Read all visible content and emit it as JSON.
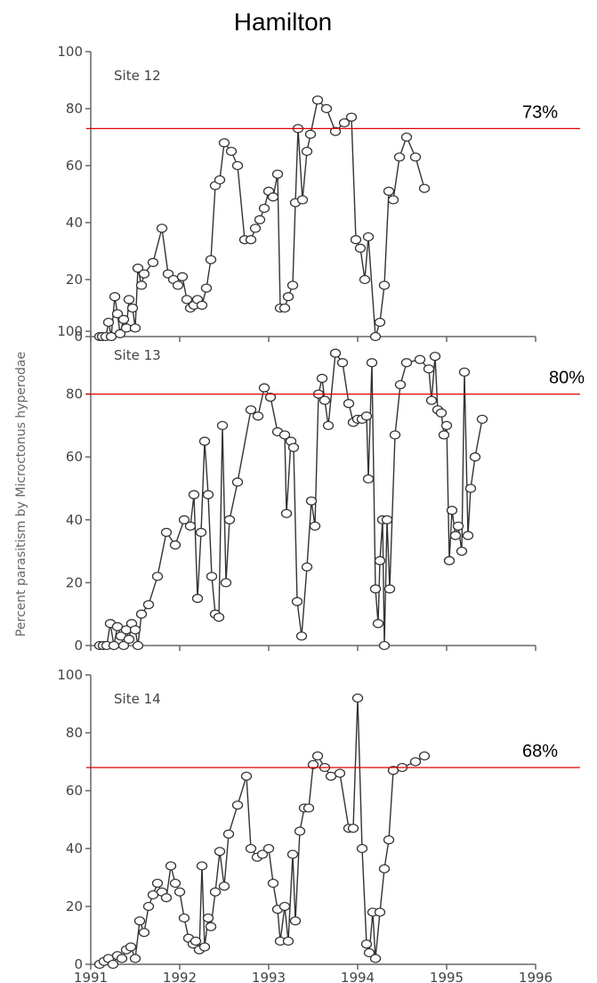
{
  "chart_data": {
    "type": "line",
    "title": "Hamilton",
    "ylabel": "Percent parasitism by Microctonus hyperodae",
    "xlim": [
      1991,
      1996
    ],
    "x_ticks": [
      1991,
      1992,
      1993,
      1994,
      1995,
      1996
    ],
    "ylim": [
      0,
      100
    ],
    "y_ticks": [
      0,
      20,
      40,
      60,
      80,
      100
    ],
    "grid": false,
    "panels": [
      {
        "site_label": "Site 12",
        "threshold": 73,
        "threshold_label": "73%",
        "y_tick_labels": [
          "0",
          "20",
          "40",
          "60",
          "80",
          "100"
        ],
        "x_tick_labels": [],
        "points": [
          [
            1991.1,
            0
          ],
          [
            1991.13,
            0
          ],
          [
            1991.17,
            0
          ],
          [
            1991.2,
            5
          ],
          [
            1991.23,
            0
          ],
          [
            1991.27,
            14
          ],
          [
            1991.3,
            8
          ],
          [
            1991.33,
            1
          ],
          [
            1991.37,
            6
          ],
          [
            1991.4,
            3
          ],
          [
            1991.43,
            13
          ],
          [
            1991.47,
            10
          ],
          [
            1991.5,
            3
          ],
          [
            1991.53,
            24
          ],
          [
            1991.57,
            18
          ],
          [
            1991.6,
            22
          ],
          [
            1991.7,
            26
          ],
          [
            1991.8,
            38
          ],
          [
            1991.87,
            22
          ],
          [
            1991.93,
            20
          ],
          [
            1991.98,
            18
          ],
          [
            1992.03,
            21
          ],
          [
            1992.08,
            13
          ],
          [
            1992.12,
            10
          ],
          [
            1992.16,
            11
          ],
          [
            1992.2,
            13
          ],
          [
            1992.25,
            11
          ],
          [
            1992.3,
            17
          ],
          [
            1992.35,
            27
          ],
          [
            1992.4,
            53
          ],
          [
            1992.45,
            55
          ],
          [
            1992.5,
            68
          ],
          [
            1992.58,
            65
          ],
          [
            1992.65,
            60
          ],
          [
            1992.73,
            34
          ],
          [
            1992.8,
            34
          ],
          [
            1992.85,
            38
          ],
          [
            1992.9,
            41
          ],
          [
            1992.95,
            45
          ],
          [
            1993.0,
            51
          ],
          [
            1993.05,
            49
          ],
          [
            1993.1,
            57
          ],
          [
            1993.13,
            10
          ],
          [
            1993.18,
            10
          ],
          [
            1993.22,
            14
          ],
          [
            1993.27,
            18
          ],
          [
            1993.3,
            47
          ],
          [
            1993.33,
            73
          ],
          [
            1993.38,
            48
          ],
          [
            1993.43,
            65
          ],
          [
            1993.47,
            71
          ],
          [
            1993.55,
            83
          ],
          [
            1993.65,
            80
          ],
          [
            1993.75,
            72
          ],
          [
            1993.85,
            75
          ],
          [
            1993.93,
            77
          ],
          [
            1993.98,
            34
          ],
          [
            1994.03,
            31
          ],
          [
            1994.08,
            20
          ],
          [
            1994.12,
            35
          ],
          [
            1994.2,
            0
          ],
          [
            1994.25,
            5
          ],
          [
            1994.3,
            18
          ],
          [
            1994.35,
            51
          ],
          [
            1994.4,
            48
          ],
          [
            1994.47,
            63
          ],
          [
            1994.55,
            70
          ],
          [
            1994.65,
            63
          ],
          [
            1994.75,
            52
          ]
        ]
      },
      {
        "site_label": "Site 13",
        "threshold": 80,
        "threshold_label": "80%",
        "y_tick_labels": [
          "0",
          "20",
          "40",
          "60",
          "80",
          "100"
        ],
        "x_tick_labels": [],
        "points": [
          [
            1991.1,
            0
          ],
          [
            1991.14,
            0
          ],
          [
            1991.18,
            0
          ],
          [
            1991.22,
            7
          ],
          [
            1991.26,
            0
          ],
          [
            1991.3,
            6
          ],
          [
            1991.34,
            3
          ],
          [
            1991.37,
            0
          ],
          [
            1991.4,
            5
          ],
          [
            1991.43,
            2
          ],
          [
            1991.46,
            7
          ],
          [
            1991.5,
            5
          ],
          [
            1991.53,
            0
          ],
          [
            1991.57,
            10
          ],
          [
            1991.65,
            13
          ],
          [
            1991.75,
            22
          ],
          [
            1991.85,
            36
          ],
          [
            1991.95,
            32
          ],
          [
            1992.05,
            40
          ],
          [
            1992.12,
            38
          ],
          [
            1992.16,
            48
          ],
          [
            1992.2,
            15
          ],
          [
            1992.24,
            36
          ],
          [
            1992.28,
            65
          ],
          [
            1992.32,
            48
          ],
          [
            1992.36,
            22
          ],
          [
            1992.4,
            10
          ],
          [
            1992.44,
            9
          ],
          [
            1992.48,
            70
          ],
          [
            1992.52,
            20
          ],
          [
            1992.56,
            40
          ],
          [
            1992.65,
            52
          ],
          [
            1992.8,
            75
          ],
          [
            1992.88,
            73
          ],
          [
            1992.95,
            82
          ],
          [
            1993.02,
            79
          ],
          [
            1993.1,
            68
          ],
          [
            1993.18,
            67
          ],
          [
            1993.2,
            42
          ],
          [
            1993.25,
            65
          ],
          [
            1993.28,
            63
          ],
          [
            1993.32,
            14
          ],
          [
            1993.37,
            3
          ],
          [
            1993.43,
            25
          ],
          [
            1993.48,
            46
          ],
          [
            1993.52,
            38
          ],
          [
            1993.56,
            80
          ],
          [
            1993.6,
            85
          ],
          [
            1993.63,
            78
          ],
          [
            1993.67,
            70
          ],
          [
            1993.75,
            93
          ],
          [
            1993.83,
            90
          ],
          [
            1993.9,
            77
          ],
          [
            1993.95,
            71
          ],
          [
            1994.0,
            72
          ],
          [
            1994.05,
            72
          ],
          [
            1994.1,
            73
          ],
          [
            1994.12,
            53
          ],
          [
            1994.16,
            90
          ],
          [
            1994.2,
            18
          ],
          [
            1994.23,
            7
          ],
          [
            1994.25,
            27
          ],
          [
            1994.28,
            40
          ],
          [
            1994.3,
            0
          ],
          [
            1994.33,
            40
          ],
          [
            1994.36,
            18
          ],
          [
            1994.42,
            67
          ],
          [
            1994.48,
            83
          ],
          [
            1994.55,
            90
          ],
          [
            1994.7,
            91
          ],
          [
            1994.8,
            88
          ],
          [
            1994.83,
            78
          ],
          [
            1994.87,
            92
          ],
          [
            1994.9,
            75
          ],
          [
            1994.94,
            74
          ],
          [
            1994.97,
            67
          ],
          [
            1995.0,
            70
          ],
          [
            1995.03,
            27
          ],
          [
            1995.06,
            43
          ],
          [
            1995.1,
            35
          ],
          [
            1995.13,
            38
          ],
          [
            1995.17,
            30
          ],
          [
            1995.2,
            87
          ],
          [
            1995.24,
            35
          ],
          [
            1995.27,
            50
          ],
          [
            1995.32,
            60
          ],
          [
            1995.4,
            72
          ]
        ]
      },
      {
        "site_label": "Site 14",
        "threshold": 68,
        "threshold_label": "68%",
        "y_tick_labels": [
          "0",
          "20",
          "40",
          "60",
          "80",
          "100"
        ],
        "x_tick_labels": [
          "1991",
          "1992",
          "1993",
          "1994",
          "1995",
          "1996"
        ],
        "points": [
          [
            1991.1,
            0
          ],
          [
            1991.15,
            1
          ],
          [
            1991.2,
            2
          ],
          [
            1991.25,
            0
          ],
          [
            1991.3,
            3
          ],
          [
            1991.35,
            2
          ],
          [
            1991.4,
            5
          ],
          [
            1991.45,
            6
          ],
          [
            1991.5,
            2
          ],
          [
            1991.55,
            15
          ],
          [
            1991.6,
            11
          ],
          [
            1991.65,
            20
          ],
          [
            1991.7,
            24
          ],
          [
            1991.75,
            28
          ],
          [
            1991.8,
            25
          ],
          [
            1991.85,
            23
          ],
          [
            1991.9,
            34
          ],
          [
            1991.95,
            28
          ],
          [
            1992.0,
            25
          ],
          [
            1992.05,
            16
          ],
          [
            1992.1,
            9
          ],
          [
            1992.15,
            7
          ],
          [
            1992.18,
            8
          ],
          [
            1992.22,
            5
          ],
          [
            1992.25,
            34
          ],
          [
            1992.28,
            6
          ],
          [
            1992.32,
            16
          ],
          [
            1992.35,
            13
          ],
          [
            1992.4,
            25
          ],
          [
            1992.45,
            39
          ],
          [
            1992.5,
            27
          ],
          [
            1992.55,
            45
          ],
          [
            1992.65,
            55
          ],
          [
            1992.75,
            65
          ],
          [
            1992.8,
            40
          ],
          [
            1992.87,
            37
          ],
          [
            1992.93,
            38
          ],
          [
            1993.0,
            40
          ],
          [
            1993.05,
            28
          ],
          [
            1993.1,
            19
          ],
          [
            1993.13,
            8
          ],
          [
            1993.18,
            20
          ],
          [
            1993.22,
            8
          ],
          [
            1993.27,
            38
          ],
          [
            1993.3,
            15
          ],
          [
            1993.35,
            46
          ],
          [
            1993.4,
            54
          ],
          [
            1993.45,
            54
          ],
          [
            1993.5,
            69
          ],
          [
            1993.55,
            72
          ],
          [
            1993.63,
            68
          ],
          [
            1993.7,
            65
          ],
          [
            1993.8,
            66
          ],
          [
            1993.9,
            47
          ],
          [
            1993.95,
            47
          ],
          [
            1994.0,
            92
          ],
          [
            1994.05,
            40
          ],
          [
            1994.1,
            7
          ],
          [
            1994.13,
            4
          ],
          [
            1994.17,
            18
          ],
          [
            1994.2,
            2
          ],
          [
            1994.25,
            18
          ],
          [
            1994.3,
            33
          ],
          [
            1994.35,
            43
          ],
          [
            1994.4,
            67
          ],
          [
            1994.5,
            68
          ],
          [
            1994.65,
            70
          ],
          [
            1994.75,
            72
          ]
        ]
      }
    ]
  },
  "colors": {
    "data_line": "#333333",
    "marker_edge": "#333333",
    "marker_fill": "#ffffff",
    "threshold_line": "#dd0000",
    "axis": "#666666"
  }
}
